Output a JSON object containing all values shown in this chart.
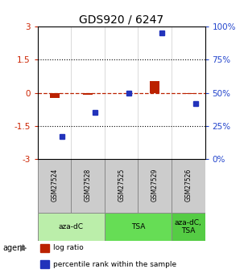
{
  "title": "GDS920 / 6247",
  "samples": [
    "GSM27524",
    "GSM27528",
    "GSM27525",
    "GSM27529",
    "GSM27526"
  ],
  "log_ratios": [
    -0.22,
    -0.07,
    0.0,
    0.52,
    -0.04
  ],
  "percentile_ranks": [
    17,
    35,
    50,
    95,
    42
  ],
  "ylim_left": [
    -3,
    3
  ],
  "ylim_right": [
    0,
    100
  ],
  "yticks_left": [
    -3,
    -1.5,
    0,
    1.5,
    3
  ],
  "ytick_labels_left": [
    "-3",
    "-1.5",
    "0",
    "1.5",
    "3"
  ],
  "ytick_labels_right": [
    "0%",
    "25%",
    "50%",
    "75%",
    "100%"
  ],
  "bar_color": "#bb2200",
  "dot_color": "#2233bb",
  "title_fontsize": 10,
  "axis_label_color_left": "#cc2200",
  "axis_label_color_right": "#2244cc",
  "groups": [
    {
      "label": "aza-dC",
      "start": 0,
      "end": 2,
      "color": "#bbeeaa"
    },
    {
      "label": "TSA",
      "start": 2,
      "end": 4,
      "color": "#66dd55"
    },
    {
      "label": "aza-dC,\nTSA",
      "start": 4,
      "end": 5,
      "color": "#55cc44"
    }
  ]
}
